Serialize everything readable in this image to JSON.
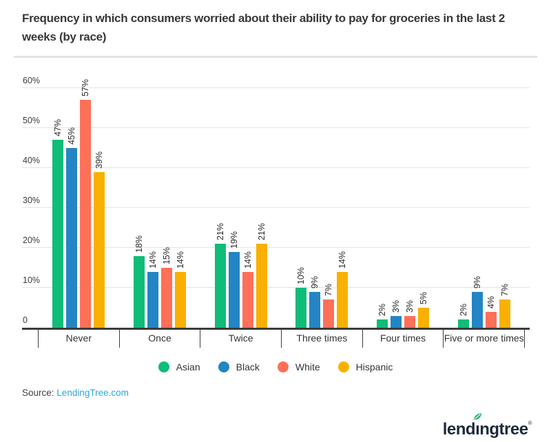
{
  "header": {
    "title": "Frequency in which consumers worried about their ability to pay for groceries in the last 2 weeks (by race)"
  },
  "chart_data": {
    "type": "bar",
    "title": "Frequency in which consumers worried about their ability to pay for groceries in the last 2 weeks (by race)",
    "categories": [
      "Never",
      "Once",
      "Twice",
      "Three times",
      "Four times",
      "Five or more times"
    ],
    "series": [
      {
        "name": "Asian",
        "color": "#0fbc78",
        "values": [
          47,
          18,
          21,
          10,
          2,
          2
        ]
      },
      {
        "name": "Black",
        "color": "#2385c4",
        "values": [
          45,
          14,
          19,
          9,
          3,
          9
        ]
      },
      {
        "name": "White",
        "color": "#fe7058",
        "values": [
          57,
          15,
          14,
          7,
          3,
          4
        ]
      },
      {
        "name": "Hispanic",
        "color": "#f9b000",
        "values": [
          39,
          14,
          21,
          14,
          5,
          7
        ]
      }
    ],
    "ylim": [
      0,
      60
    ],
    "y_ticks": [
      "0",
      "10%",
      "20%",
      "30%",
      "40%",
      "50%",
      "60%"
    ],
    "value_suffix": "%",
    "grid": "horizontal",
    "legend_position": "bottom",
    "axis_color": "#3b3b3b",
    "gridline_color": "#e4e4e4"
  },
  "source": {
    "label": "Source:",
    "link_text": "LendingTree.com",
    "link_color": "#2aa7e0"
  },
  "logo": {
    "name": "lendingtree",
    "pre": "lend",
    "i": "ı",
    "post": "ngtree",
    "reg": "®",
    "navy": "#1c2a3a",
    "leaf_green": "#2bb673"
  }
}
